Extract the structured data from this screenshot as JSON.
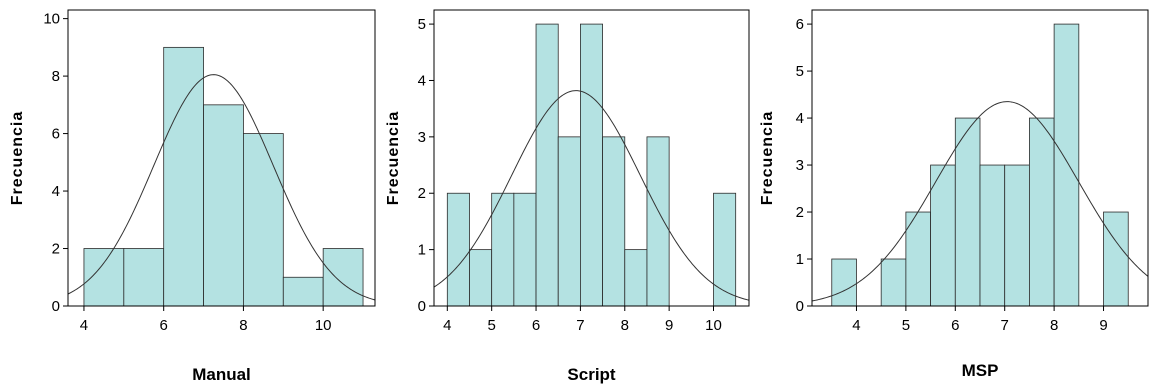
{
  "chart_data": [
    {
      "type": "bar",
      "xlabel": "Manual",
      "ylabel": "Frecuencia",
      "xlim": [
        3.6,
        11.3
      ],
      "ylim": [
        0,
        10.3
      ],
      "xticks": [
        4,
        6,
        8,
        10
      ],
      "yticks": [
        0,
        2,
        4,
        6,
        8,
        10
      ],
      "bins": [
        [
          4,
          5,
          2
        ],
        [
          5,
          6,
          2
        ],
        [
          6,
          7,
          9
        ],
        [
          7,
          8,
          7
        ],
        [
          8,
          9,
          6
        ],
        [
          9,
          10,
          1
        ],
        [
          10,
          11,
          2
        ]
      ],
      "normal_curve": {
        "mean": 7.25,
        "sd": 1.5,
        "peak": 8.05
      },
      "grid": false
    },
    {
      "type": "bar",
      "xlabel": "Script",
      "ylabel": "Frecuencia",
      "xlim": [
        3.7,
        10.8
      ],
      "ylim": [
        0,
        5.25
      ],
      "xticks": [
        4,
        5,
        6,
        7,
        8,
        9,
        10
      ],
      "yticks": [
        0,
        1,
        2,
        3,
        4,
        5
      ],
      "bins": [
        [
          4.0,
          4.5,
          2
        ],
        [
          4.5,
          5.0,
          1
        ],
        [
          5.0,
          5.5,
          2
        ],
        [
          5.5,
          6.0,
          2
        ],
        [
          6.0,
          6.5,
          5
        ],
        [
          6.5,
          7.0,
          3
        ],
        [
          7.0,
          7.5,
          5
        ],
        [
          7.5,
          8.0,
          3
        ],
        [
          8.0,
          8.5,
          1
        ],
        [
          8.5,
          9.0,
          3
        ],
        [
          10.0,
          10.5,
          2
        ]
      ],
      "normal_curve": {
        "mean": 6.9,
        "sd": 1.45,
        "peak": 3.82
      },
      "grid": false
    },
    {
      "type": "bar",
      "xlabel": "MSP",
      "ylabel": "Frecuencia",
      "xlim": [
        3.1,
        9.9
      ],
      "ylim": [
        0,
        6.3
      ],
      "xticks": [
        4,
        5,
        6,
        7,
        8,
        9
      ],
      "yticks": [
        0,
        1,
        2,
        3,
        4,
        5,
        6
      ],
      "bins": [
        [
          3.5,
          4.0,
          1
        ],
        [
          4.5,
          5.0,
          1
        ],
        [
          5.0,
          5.5,
          2
        ],
        [
          5.5,
          6.0,
          3
        ],
        [
          6.0,
          6.5,
          4
        ],
        [
          6.5,
          7.0,
          3
        ],
        [
          7.0,
          7.5,
          3
        ],
        [
          7.5,
          8.0,
          4
        ],
        [
          8.0,
          8.5,
          6
        ],
        [
          9.0,
          9.5,
          2
        ]
      ],
      "normal_curve": {
        "mean": 7.05,
        "sd": 1.45,
        "peak": 4.35
      },
      "grid": false
    }
  ]
}
